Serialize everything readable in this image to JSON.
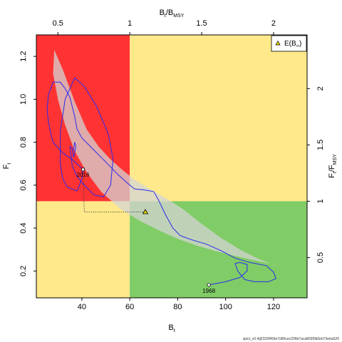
{
  "chart_data": {
    "type": "line",
    "xlabel": "B",
    "xlabel_sub": "t",
    "ylabel": "F",
    "ylabel_sub": "t",
    "top_xlabel": "B",
    "top_xlabel_sub1": "t",
    "top_xlabel_sep": "/B",
    "top_xlabel_sub2": "MSY",
    "right_ylabel": "F",
    "right_ylabel_sub1": "t",
    "right_ylabel_sep": "/F",
    "right_ylabel_sub2": "MSY",
    "xlim": [
      21,
      134
    ],
    "ylim": [
      0.075,
      1.3
    ],
    "bmsy": 60,
    "fmsy": 0.525,
    "x_ticks": [
      "40",
      "60",
      "80",
      "100",
      "120"
    ],
    "y_ticks": [
      "0.2",
      "0.4",
      "0.6",
      "0.8",
      "1.0",
      "1.2"
    ],
    "top_ticks": [
      "0.5",
      "1",
      "1.5",
      "2"
    ],
    "right_ticks": [
      "0.5",
      "1",
      "1.5",
      "2"
    ],
    "legend": {
      "label": "E(B",
      "sub": "∞",
      "close": ")",
      "position": "top-right"
    },
    "zone_colors": {
      "red": "#ff3333",
      "yellow": "#ffe98a",
      "green": "#80cc66"
    },
    "trajectory_color": "#2a2aee",
    "ellipse_color": "#d4d4d4",
    "start_label": "1968",
    "end_label": "2016",
    "start_point": [
      93,
      0.135
    ],
    "end_point": [
      40.5,
      0.673
    ],
    "equilibrium_point": [
      66.5,
      0.475
    ],
    "ellipse": [
      [
        28.5,
        1.23
      ],
      [
        32,
        1.14
      ],
      [
        37,
        0.99
      ],
      [
        42,
        0.86
      ],
      [
        47,
        0.78
      ],
      [
        52,
        0.72
      ],
      [
        57,
        0.67
      ],
      [
        62,
        0.625
      ],
      [
        68,
        0.585
      ],
      [
        75,
        0.54
      ],
      [
        82,
        0.49
      ],
      [
        90,
        0.42
      ],
      [
        98,
        0.355
      ],
      [
        106,
        0.3
      ],
      [
        114,
        0.255
      ],
      [
        120,
        0.23
      ],
      [
        124,
        0.222
      ],
      [
        120,
        0.232
      ],
      [
        112,
        0.25
      ],
      [
        104,
        0.27
      ],
      [
        96,
        0.292
      ],
      [
        88,
        0.318
      ],
      [
        80,
        0.35
      ],
      [
        72,
        0.39
      ],
      [
        64,
        0.435
      ],
      [
        56,
        0.49
      ],
      [
        48,
        0.57
      ],
      [
        42,
        0.66
      ],
      [
        37,
        0.76
      ],
      [
        33,
        0.88
      ],
      [
        30,
        1.0
      ],
      [
        28,
        1.12
      ],
      [
        28.5,
        1.23
      ]
    ],
    "trajectory": [
      [
        93,
        0.135
      ],
      [
        100,
        0.15
      ],
      [
        106,
        0.17
      ],
      [
        109,
        0.2
      ],
      [
        109,
        0.23
      ],
      [
        106,
        0.24
      ],
      [
        104,
        0.235
      ],
      [
        105,
        0.2
      ],
      [
        108,
        0.16
      ],
      [
        112,
        0.15
      ],
      [
        118,
        0.15
      ],
      [
        121,
        0.165
      ],
      [
        120,
        0.195
      ],
      [
        117,
        0.225
      ],
      [
        110,
        0.24
      ],
      [
        104,
        0.26
      ],
      [
        98,
        0.295
      ],
      [
        92,
        0.325
      ],
      [
        86,
        0.345
      ],
      [
        81,
        0.365
      ],
      [
        78,
        0.4
      ],
      [
        75,
        0.46
      ],
      [
        72,
        0.53
      ],
      [
        70,
        0.57
      ],
      [
        66,
        0.578
      ],
      [
        62,
        0.582
      ],
      [
        60,
        0.6
      ],
      [
        55,
        0.65
      ],
      [
        52,
        0.685
      ],
      [
        48,
        0.73
      ],
      [
        44,
        0.775
      ],
      [
        40,
        0.82
      ],
      [
        38,
        0.86
      ],
      [
        37,
        0.92
      ],
      [
        35,
        1.01
      ],
      [
        33,
        1.05
      ],
      [
        31,
        1.08
      ],
      [
        28,
        1.08
      ],
      [
        26,
        1.02
      ],
      [
        25.5,
        0.95
      ],
      [
        26,
        0.9
      ],
      [
        27,
        0.84
      ],
      [
        28,
        0.8
      ],
      [
        32,
        0.75
      ],
      [
        36,
        0.72
      ],
      [
        40.5,
        0.673
      ],
      [
        40,
        0.63
      ],
      [
        39,
        0.6
      ],
      [
        38,
        0.573
      ],
      [
        34,
        0.59
      ],
      [
        32,
        0.63
      ],
      [
        31,
        0.7
      ],
      [
        31,
        0.85
      ],
      [
        33,
        1.0
      ],
      [
        37,
        1.1
      ],
      [
        41,
        1.06
      ],
      [
        46,
        0.97
      ],
      [
        51,
        0.84
      ],
      [
        53,
        0.72
      ],
      [
        52,
        0.6
      ],
      [
        49,
        0.545
      ],
      [
        45,
        0.555
      ],
      [
        41,
        0.6
      ],
      [
        38,
        0.64
      ],
      [
        36,
        0.69
      ],
      [
        35,
        0.78
      ],
      [
        36,
        0.77
      ],
      [
        36.5,
        0.73
      ],
      [
        37,
        0.75
      ],
      [
        37.5,
        0.78
      ],
      [
        37,
        0.8
      ],
      [
        36.5,
        0.76
      ]
    ],
    "guide_path": [
      [
        40.5,
        0.673
      ],
      [
        41,
        0.475
      ],
      [
        66.5,
        0.475
      ]
    ],
    "footer": "spict_v0.4@332f459e7d96cec206b7aca803f0b0eb73eba526"
  }
}
